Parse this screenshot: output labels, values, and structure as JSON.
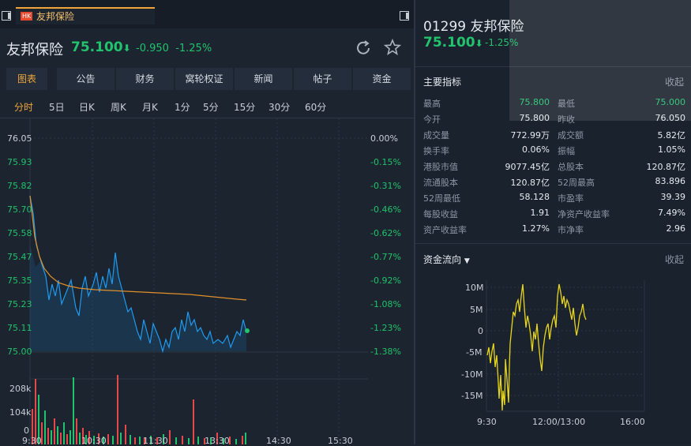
{
  "tab": {
    "badge": "HK",
    "name": "友邦保险"
  },
  "stock": {
    "name": "友邦保险",
    "price": "75.100",
    "arrow": "⬇",
    "change": "-0.950",
    "change_pct": "-1.25%"
  },
  "nav_buttons": [
    "图表",
    "公告",
    "财务",
    "窝轮权证",
    "新闻",
    "帖子",
    "资金"
  ],
  "ranges": [
    "分时",
    "5日",
    "日K",
    "周K",
    "月K",
    "1分",
    "5分",
    "15分",
    "30分",
    "60分"
  ],
  "price_axis": [
    "76.05",
    "75.93",
    "75.82",
    "75.70",
    "75.58",
    "75.47",
    "75.35",
    "75.23",
    "75.11",
    "75.00"
  ],
  "pct_axis": [
    "0.00%",
    "-0.15%",
    "-0.31%",
    "-0.46%",
    "-0.62%",
    "-0.77%",
    "-0.92%",
    "-1.08%",
    "-1.23%",
    "-1.38%"
  ],
  "volume_axis": [
    "208k",
    "104k",
    "0"
  ],
  "time_axis": [
    "9:30",
    "10:30",
    "11:30",
    "13:30",
    "14:30",
    "15:30"
  ],
  "right": {
    "code_name": "01299 友邦保险",
    "price": "75.100",
    "arrow": "⬇",
    "change_pct": "-1.25%",
    "metrics_title": "主要指标",
    "collapse": "收起",
    "metrics": [
      {
        "label": "最高",
        "value": "75.800",
        "label2": "最低",
        "value2": "75.000"
      },
      {
        "label": "今开",
        "value": "75.800",
        "label2": "昨收",
        "value2": "76.050"
      },
      {
        "label": "成交量",
        "value": "772.99万",
        "label2": "成交额",
        "value2": "5.82亿"
      },
      {
        "label": "换手率",
        "value": "0.06%",
        "label2": "振幅",
        "value2": "1.05%"
      },
      {
        "label": "港股市值",
        "value": "9077.45亿",
        "label2": "总股本",
        "value2": "120.87亿"
      },
      {
        "label": "流通股本",
        "value": "120.87亿",
        "label2": "52周最高",
        "value2": "83.896"
      },
      {
        "label": "52周最低",
        "value": "58.128",
        "label2": "市盈率",
        "value2": "39.39"
      },
      {
        "label": "每股收益",
        "value": "1.91",
        "label2": "净资产收益率",
        "value2": "7.49%"
      },
      {
        "label": "资产收益率",
        "value": "1.27%",
        "label2": "市净率",
        "value2": "2.96"
      }
    ],
    "flow_title": "资金流向",
    "flow_collapse": "收起",
    "flow_y": [
      "10M",
      "5M",
      "0",
      "-5M",
      "-10M",
      "-15M"
    ],
    "flow_x": [
      "9:30",
      "12:00/13:00",
      "16:00"
    ]
  },
  "colors": {
    "up": "#21c36d",
    "down": "#e54848",
    "accent": "#f0a53a",
    "price_line": "#1e9bf0",
    "avg_line": "#e0902a",
    "flow_line": "#e8d61a"
  }
}
